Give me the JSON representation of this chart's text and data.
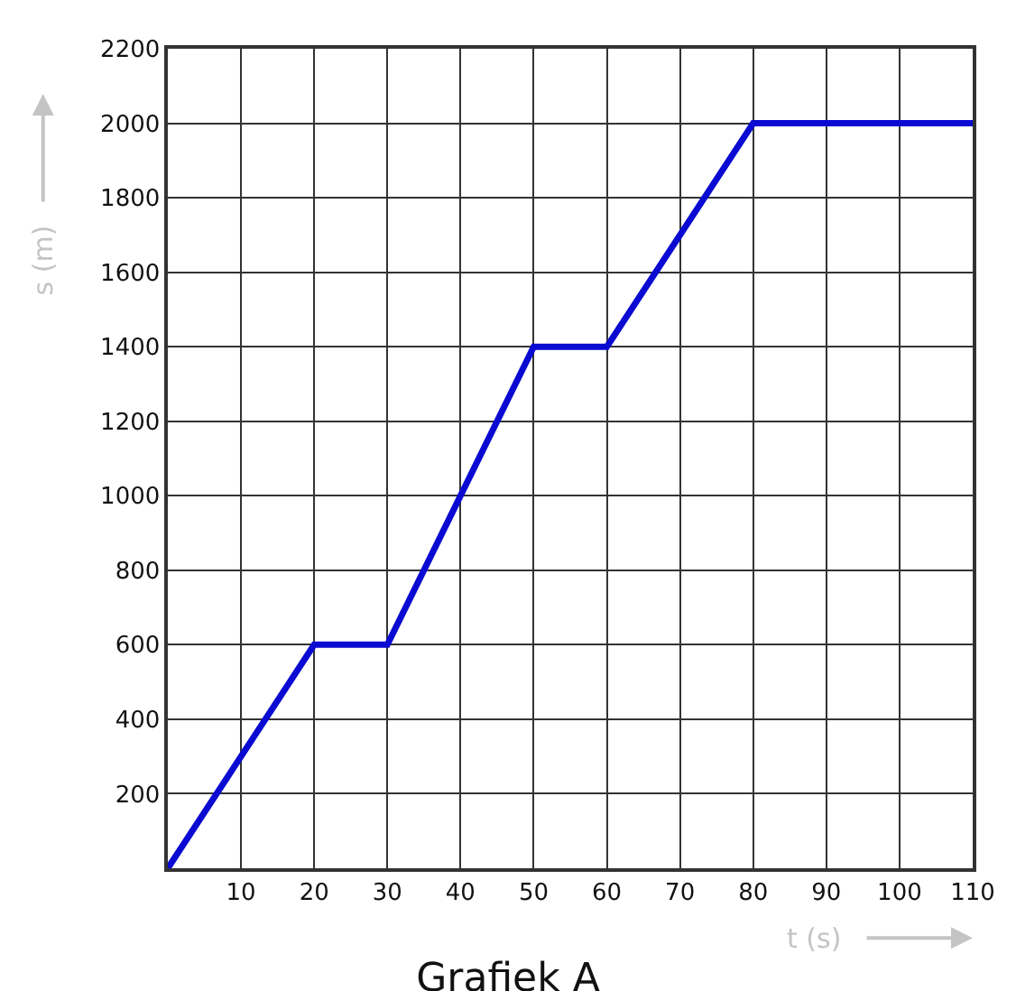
{
  "chart_data": {
    "type": "line",
    "title": "Grafiek A",
    "xlabel": "t (s)",
    "ylabel": "s (m)",
    "x": [
      0,
      20,
      30,
      50,
      60,
      80,
      110
    ],
    "series": [
      {
        "color": "#0a0ad2",
        "values": [
          0,
          600,
          600,
          1400,
          1400,
          2000,
          2000
        ]
      }
    ],
    "xlim": [
      0,
      110
    ],
    "xticks": [
      10,
      20,
      30,
      40,
      50,
      60,
      70,
      80,
      90,
      100,
      110
    ],
    "ylim": [
      0,
      2200
    ],
    "yticks": [
      200,
      400,
      600,
      800,
      1000,
      1200,
      1400,
      1600,
      1800,
      2000,
      2200
    ],
    "grid": true,
    "marker": "none",
    "line_style": "solid"
  }
}
